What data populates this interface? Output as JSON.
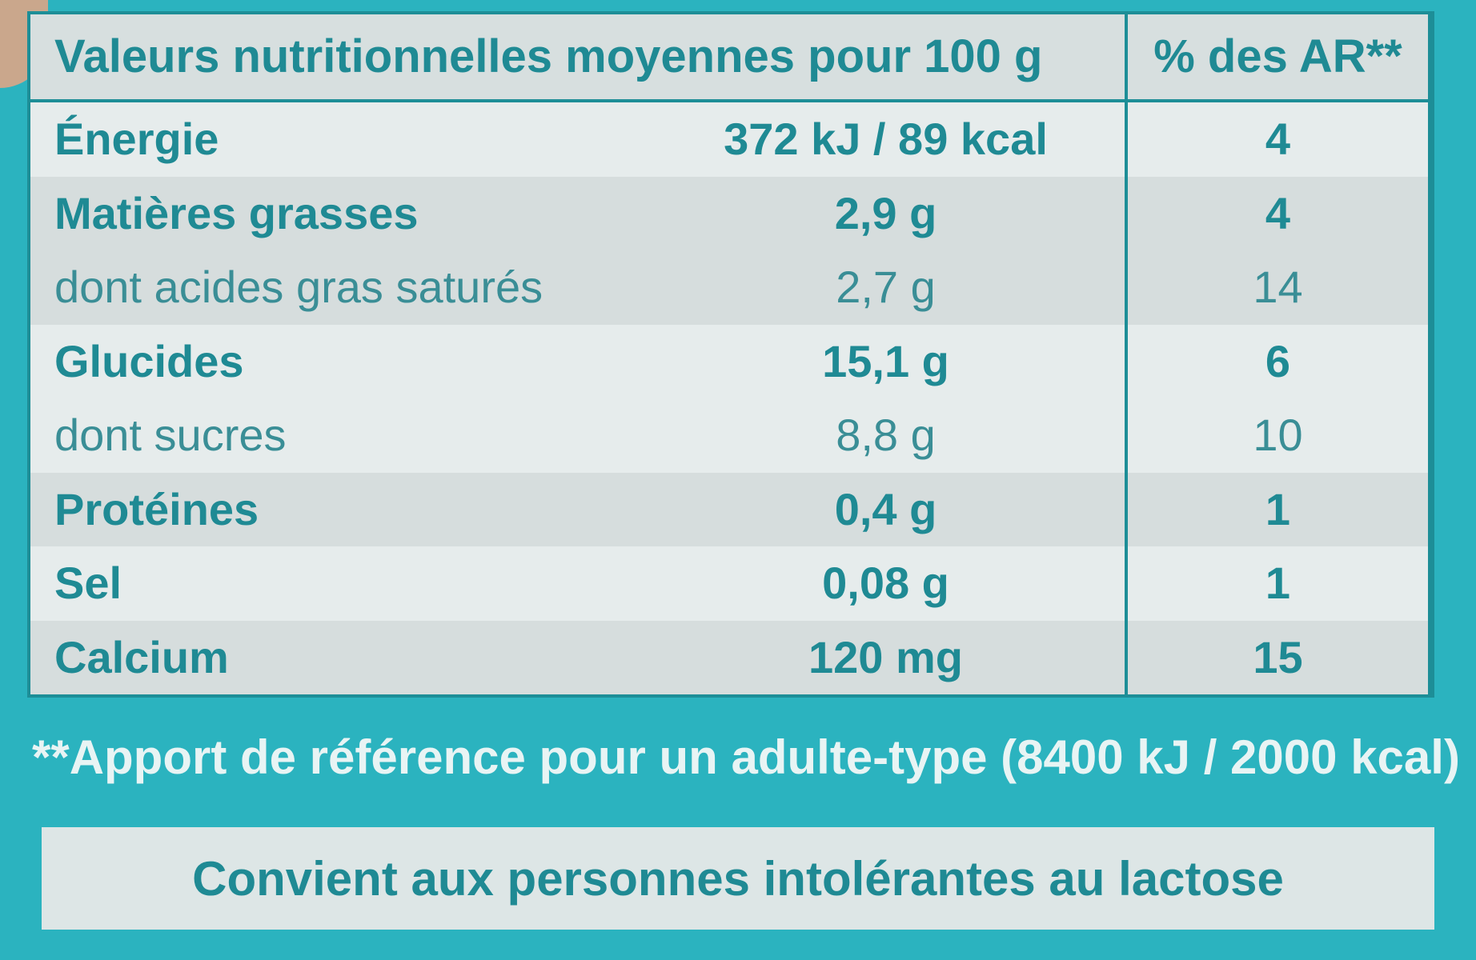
{
  "header": {
    "nutrient_column": "Valeurs nutritionnelles moyennes pour 100 g",
    "ar_column": "% des AR**"
  },
  "rows": [
    {
      "name": "Énergie",
      "value": "372 kJ / 89 kcal",
      "ar": "4",
      "bold": false
    },
    {
      "name": "Matières grasses",
      "value": "2,9 g",
      "ar": "4",
      "bold": true
    },
    {
      "name": "dont acides gras saturés",
      "value": "2,7 g",
      "ar": "14",
      "bold": false
    },
    {
      "name": "Glucides",
      "value": "15,1 g",
      "ar": "6",
      "bold": true
    },
    {
      "name": "dont sucres",
      "value": "8,8 g",
      "ar": "10",
      "bold": false
    },
    {
      "name": "Protéines",
      "value": "0,4 g",
      "ar": "1",
      "bold": true
    },
    {
      "name": "Sel",
      "value": "0,08 g",
      "ar": "1",
      "bold": true
    },
    {
      "name": "Calcium",
      "value": "120 mg",
      "ar": "15",
      "bold": true
    }
  ],
  "footnote": "**Apport de référence pour un adulte-type (8400 kJ / 2000 kcal)",
  "banner": "Convient aux personnes intolérantes au lactose",
  "colors": {
    "teal_background": "#2bb3bf",
    "text_teal": "#1f8a94",
    "table_background": "#e6ecec"
  }
}
